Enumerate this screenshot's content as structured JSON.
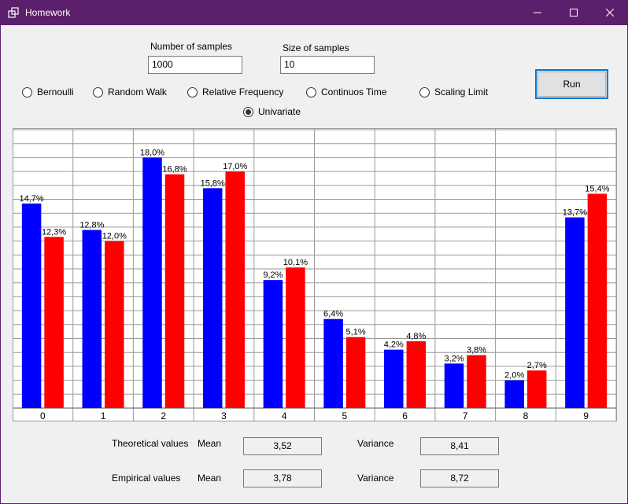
{
  "window": {
    "title": "Homework",
    "icon": "window-app-icon"
  },
  "controls": {
    "num_samples_label": "Number of samples",
    "num_samples_value": "1000",
    "size_samples_label": "Size of samples",
    "size_samples_value": "10",
    "run_label": "Run"
  },
  "radios": [
    {
      "label": "Bernoulli",
      "checked": false
    },
    {
      "label": "Random Walk",
      "checked": false
    },
    {
      "label": "Relative Frequency",
      "checked": false
    },
    {
      "label": "Continuos Time",
      "checked": false
    },
    {
      "label": "Scaling Limit",
      "checked": false
    },
    {
      "label": "Univariate",
      "checked": true
    }
  ],
  "stats": {
    "theoretical_label": "Theoretical values",
    "empirical_label": "Empirical values",
    "mean_label": "Mean",
    "variance_label": "Variance",
    "theoretical_mean": "3,52",
    "theoretical_variance": "8,41",
    "empirical_mean": "3,78",
    "empirical_variance": "8,72"
  },
  "chart_data": {
    "type": "bar",
    "categories": [
      "0",
      "1",
      "2",
      "3",
      "4",
      "5",
      "6",
      "7",
      "8",
      "9"
    ],
    "series": [
      {
        "color": "#0000ff",
        "values": [
          14.7,
          12.8,
          18.0,
          15.8,
          9.2,
          6.4,
          4.2,
          3.2,
          2.0,
          13.7
        ],
        "labels": [
          "14,7%",
          "12,8%",
          "18,0%",
          "15,8%",
          "9,2%",
          "6,4%",
          "4,2%",
          "3,2%",
          "2,0%",
          "13,7%"
        ]
      },
      {
        "color": "#ff0000",
        "values": [
          12.3,
          12.0,
          16.8,
          17.0,
          10.1,
          5.1,
          4.8,
          3.8,
          2.7,
          15.4
        ],
        "labels": [
          "12,3%",
          "12,0%",
          "16,8%",
          "17,0%",
          "10,1%",
          "5,1%",
          "4,8%",
          "3,8%",
          "2,7%",
          "15,4%"
        ]
      }
    ],
    "ylim": [
      0,
      20
    ],
    "grid": true
  }
}
